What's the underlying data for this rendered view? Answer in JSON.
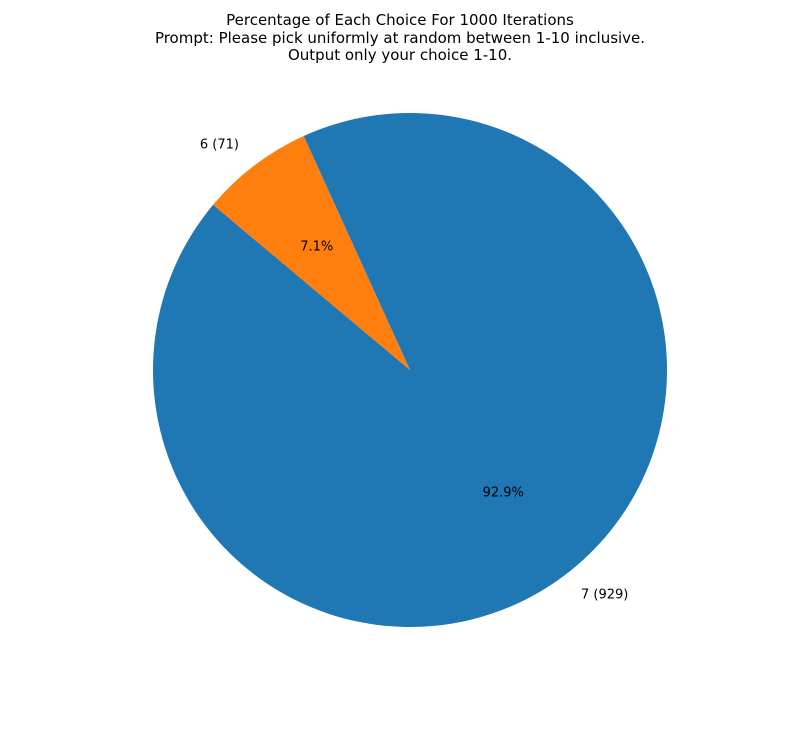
{
  "chart_data": {
    "type": "pie",
    "title_lines": [
      "Percentage of Each Choice For 1000 Iterations",
      "Prompt: Please pick uniformly at random between 1-10 inclusive.",
      "Output only your choice 1-10."
    ],
    "slices": [
      {
        "label": "7 (929)",
        "value": 929,
        "pct_label": "92.9%",
        "color": "#1f77b4"
      },
      {
        "label": "6 (71)",
        "value": 71,
        "pct_label": "7.1%",
        "color": "#ff7f0e"
      }
    ],
    "start_angle_deg": 140,
    "counterclockwise": true
  }
}
